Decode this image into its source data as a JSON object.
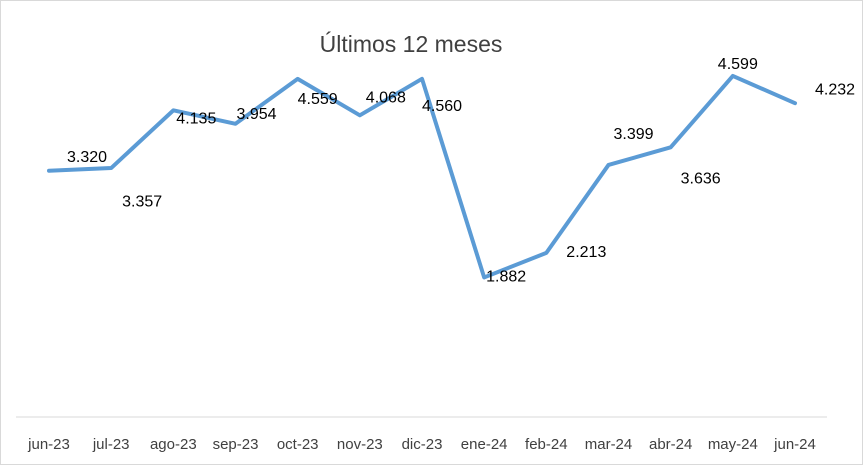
{
  "chart_data": {
    "type": "line",
    "title": "Últimos 12 meses",
    "xlabel": "",
    "ylabel": "",
    "categories": [
      "jun-23",
      "jul-23",
      "ago-23",
      "sep-23",
      "oct-23",
      "nov-23",
      "dic-23",
      "ene-24",
      "feb-24",
      "mar-24",
      "abr-24",
      "may-24",
      "jun-24"
    ],
    "series": [
      {
        "values": [
          3.32,
          3.357,
          4.135,
          3.954,
          4.559,
          4.068,
          4.56,
          1.882,
          2.213,
          3.399,
          3.636,
          4.599,
          4.232
        ],
        "labels": [
          "3.320",
          "3.357",
          "4.135",
          "3.954",
          "4.559",
          "4.068",
          "4.560",
          "1.882",
          "2.213",
          "3.399",
          "3.636",
          "4.599",
          "4.232"
        ],
        "color": "#5b9bd5"
      }
    ],
    "ylim": [
      0,
      5
    ],
    "grid": false,
    "legend": "none",
    "y_axis_visible": false
  }
}
